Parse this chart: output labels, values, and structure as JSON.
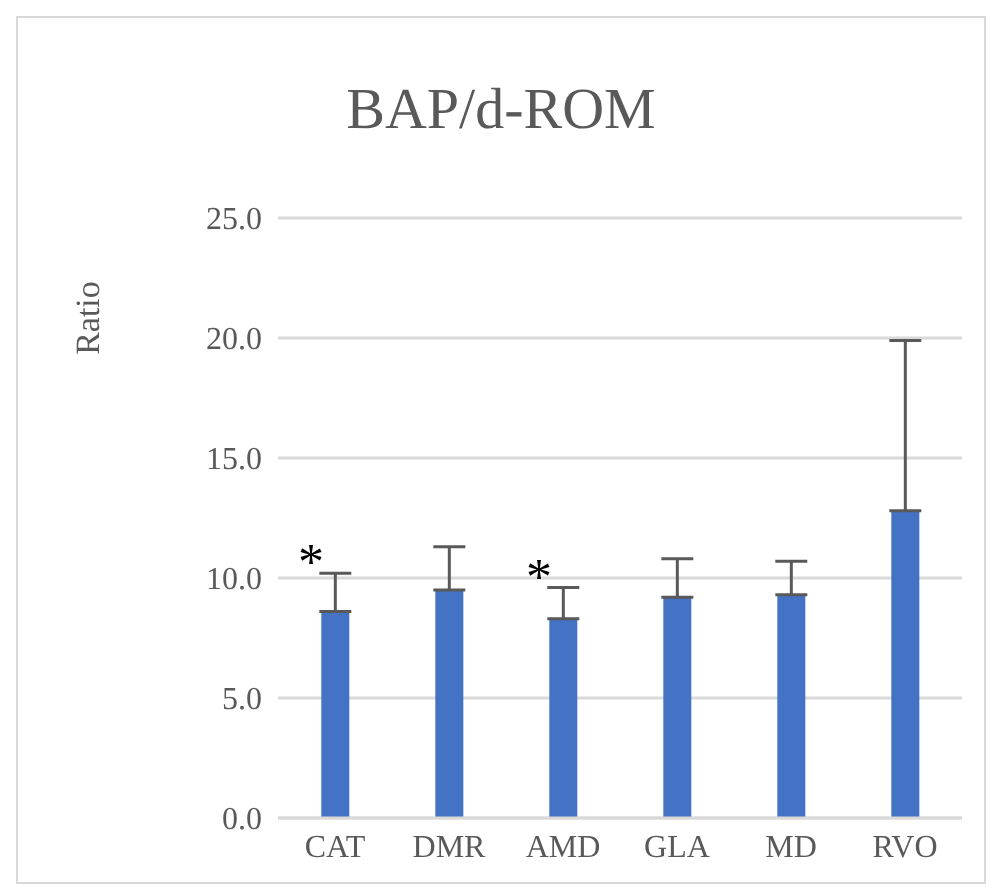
{
  "chart_data": {
    "type": "bar",
    "title": "BAP/d-ROM",
    "ylabel": "Ratio",
    "categories": [
      "CAT",
      "DMR",
      "AMD",
      "GLA",
      "MD",
      "RVO"
    ],
    "values": [
      8.6,
      9.5,
      8.3,
      9.2,
      9.3,
      12.8
    ],
    "errors": [
      [
        8.6,
        10.2
      ],
      [
        9.5,
        11.3
      ],
      [
        8.3,
        9.6
      ],
      [
        9.2,
        10.8
      ],
      [
        9.3,
        10.7
      ],
      [
        12.8,
        19.9
      ]
    ],
    "color": "#4472c4",
    "ylim": [
      0,
      25
    ],
    "yticks": [
      {
        "value": 0,
        "label": "0.0"
      },
      {
        "value": 5,
        "label": "5.0"
      },
      {
        "value": 10,
        "label": "10.0"
      },
      {
        "value": 15,
        "label": "15.0"
      },
      {
        "value": 20,
        "label": "20.0"
      },
      {
        "value": 25,
        "label": "25.0"
      }
    ],
    "grid": "y",
    "annotations": [
      {
        "text": "*",
        "x": "CAT",
        "y": 10.2
      },
      {
        "text": "*",
        "x": "AMD",
        "y": 9.6
      }
    ]
  }
}
